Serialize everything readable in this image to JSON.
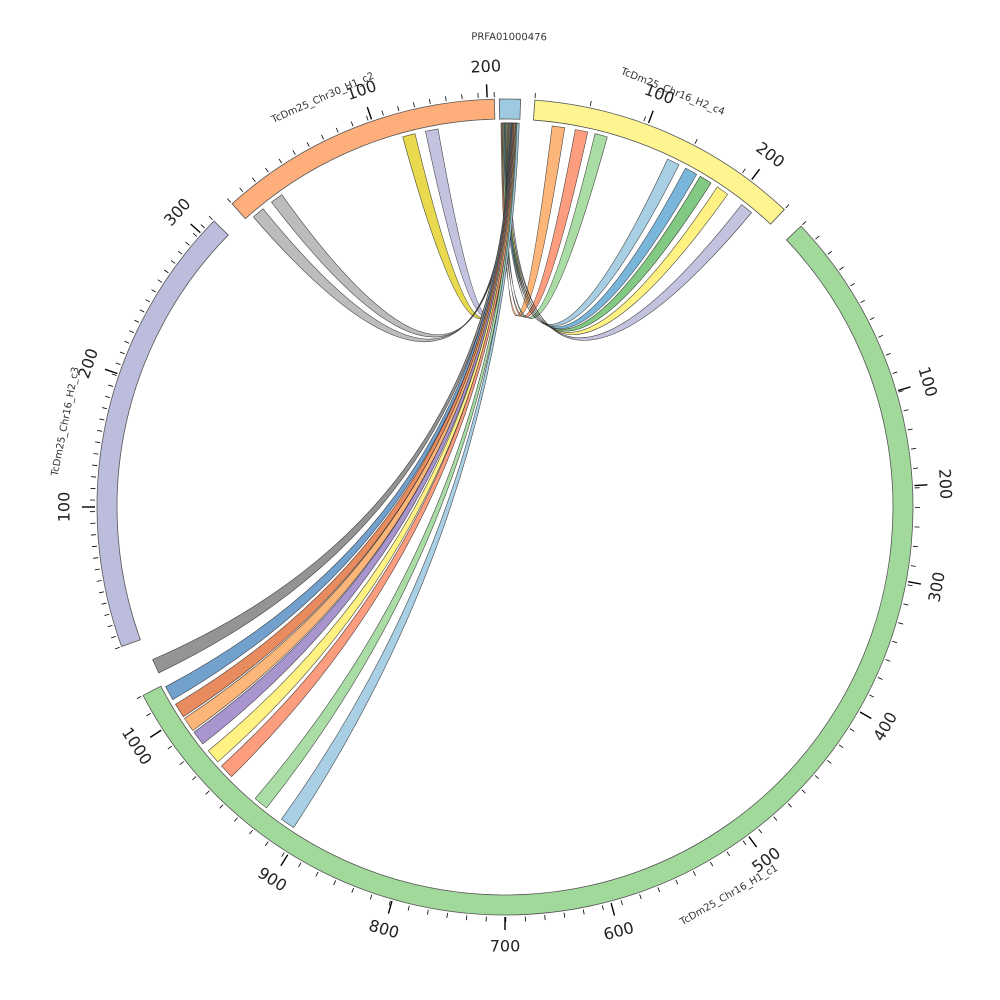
{
  "chart_data": {
    "type": "chord",
    "segments": [
      {
        "id": "prfa",
        "name": "PRFA01000476",
        "color": "#9ecae1",
        "ticks": []
      },
      {
        "id": "c4",
        "name": "TcDm25_Chr16_H2_c4",
        "color": "#fff590",
        "ticks": [
          {
            "value": 100,
            "label": "100"
          },
          {
            "value": 200,
            "label": "200"
          }
        ]
      },
      {
        "id": "c1",
        "name": "TcDm25_Chr16_H1_c1",
        "color": "#a1d99b",
        "ticks": [
          {
            "value": 100,
            "label": "100"
          },
          {
            "value": 200,
            "label": "200"
          },
          {
            "value": 300,
            "label": "300"
          },
          {
            "value": 400,
            "label": "400"
          },
          {
            "value": 500,
            "label": "500"
          },
          {
            "value": 600,
            "label": "600"
          },
          {
            "value": 700,
            "label": "700"
          },
          {
            "value": 800,
            "label": "800"
          },
          {
            "value": 900,
            "label": "900"
          },
          {
            "value": 1000,
            "label": "1000"
          }
        ]
      },
      {
        "id": "c3",
        "name": "TcDm25_Chr16_H2_c3",
        "color": "#bcbddc",
        "ticks": [
          {
            "value": 100,
            "label": "100"
          },
          {
            "value": 200,
            "label": "200"
          },
          {
            "value": 300,
            "label": "300"
          }
        ]
      },
      {
        "id": "c2",
        "name": "TcDm25_Chr30_H1_c2",
        "color": "#fdae7a",
        "ticks": [
          {
            "value": 100,
            "label": "100"
          },
          {
            "value": 200,
            "label": "200"
          }
        ]
      }
    ],
    "links": [
      {
        "target": "c4",
        "color": "#fdae6b"
      },
      {
        "target": "c4",
        "color": "#fc9272"
      },
      {
        "target": "c4",
        "color": "#a1d99b"
      },
      {
        "target": "c4",
        "color": "#9ecae1"
      },
      {
        "target": "c4",
        "color": "#6baed6"
      },
      {
        "target": "c4",
        "color": "#74c476"
      },
      {
        "target": "c4",
        "color": "#fff176"
      },
      {
        "target": "c4",
        "color": "#bcbddc"
      },
      {
        "target": "c2",
        "color": "#bcbddc"
      },
      {
        "target": "c2",
        "color": "#e6d53c"
      },
      {
        "target": "c3",
        "color": "#b5b5b5"
      },
      {
        "target": "c3",
        "color": "#b5b5b5"
      },
      {
        "target": "c1",
        "color": "#888888"
      },
      {
        "target": "c1",
        "color": "#6497c8"
      },
      {
        "target": "c1",
        "color": "#e6804e"
      },
      {
        "target": "c1",
        "color": "#fdae6b"
      },
      {
        "target": "c1",
        "color": "#9e8ac8"
      },
      {
        "target": "c1",
        "color": "#fff176"
      },
      {
        "target": "c1",
        "color": "#fc9272"
      },
      {
        "target": "c1",
        "color": "#a1d99b"
      },
      {
        "target": "c1",
        "color": "#9ecae1"
      }
    ]
  }
}
